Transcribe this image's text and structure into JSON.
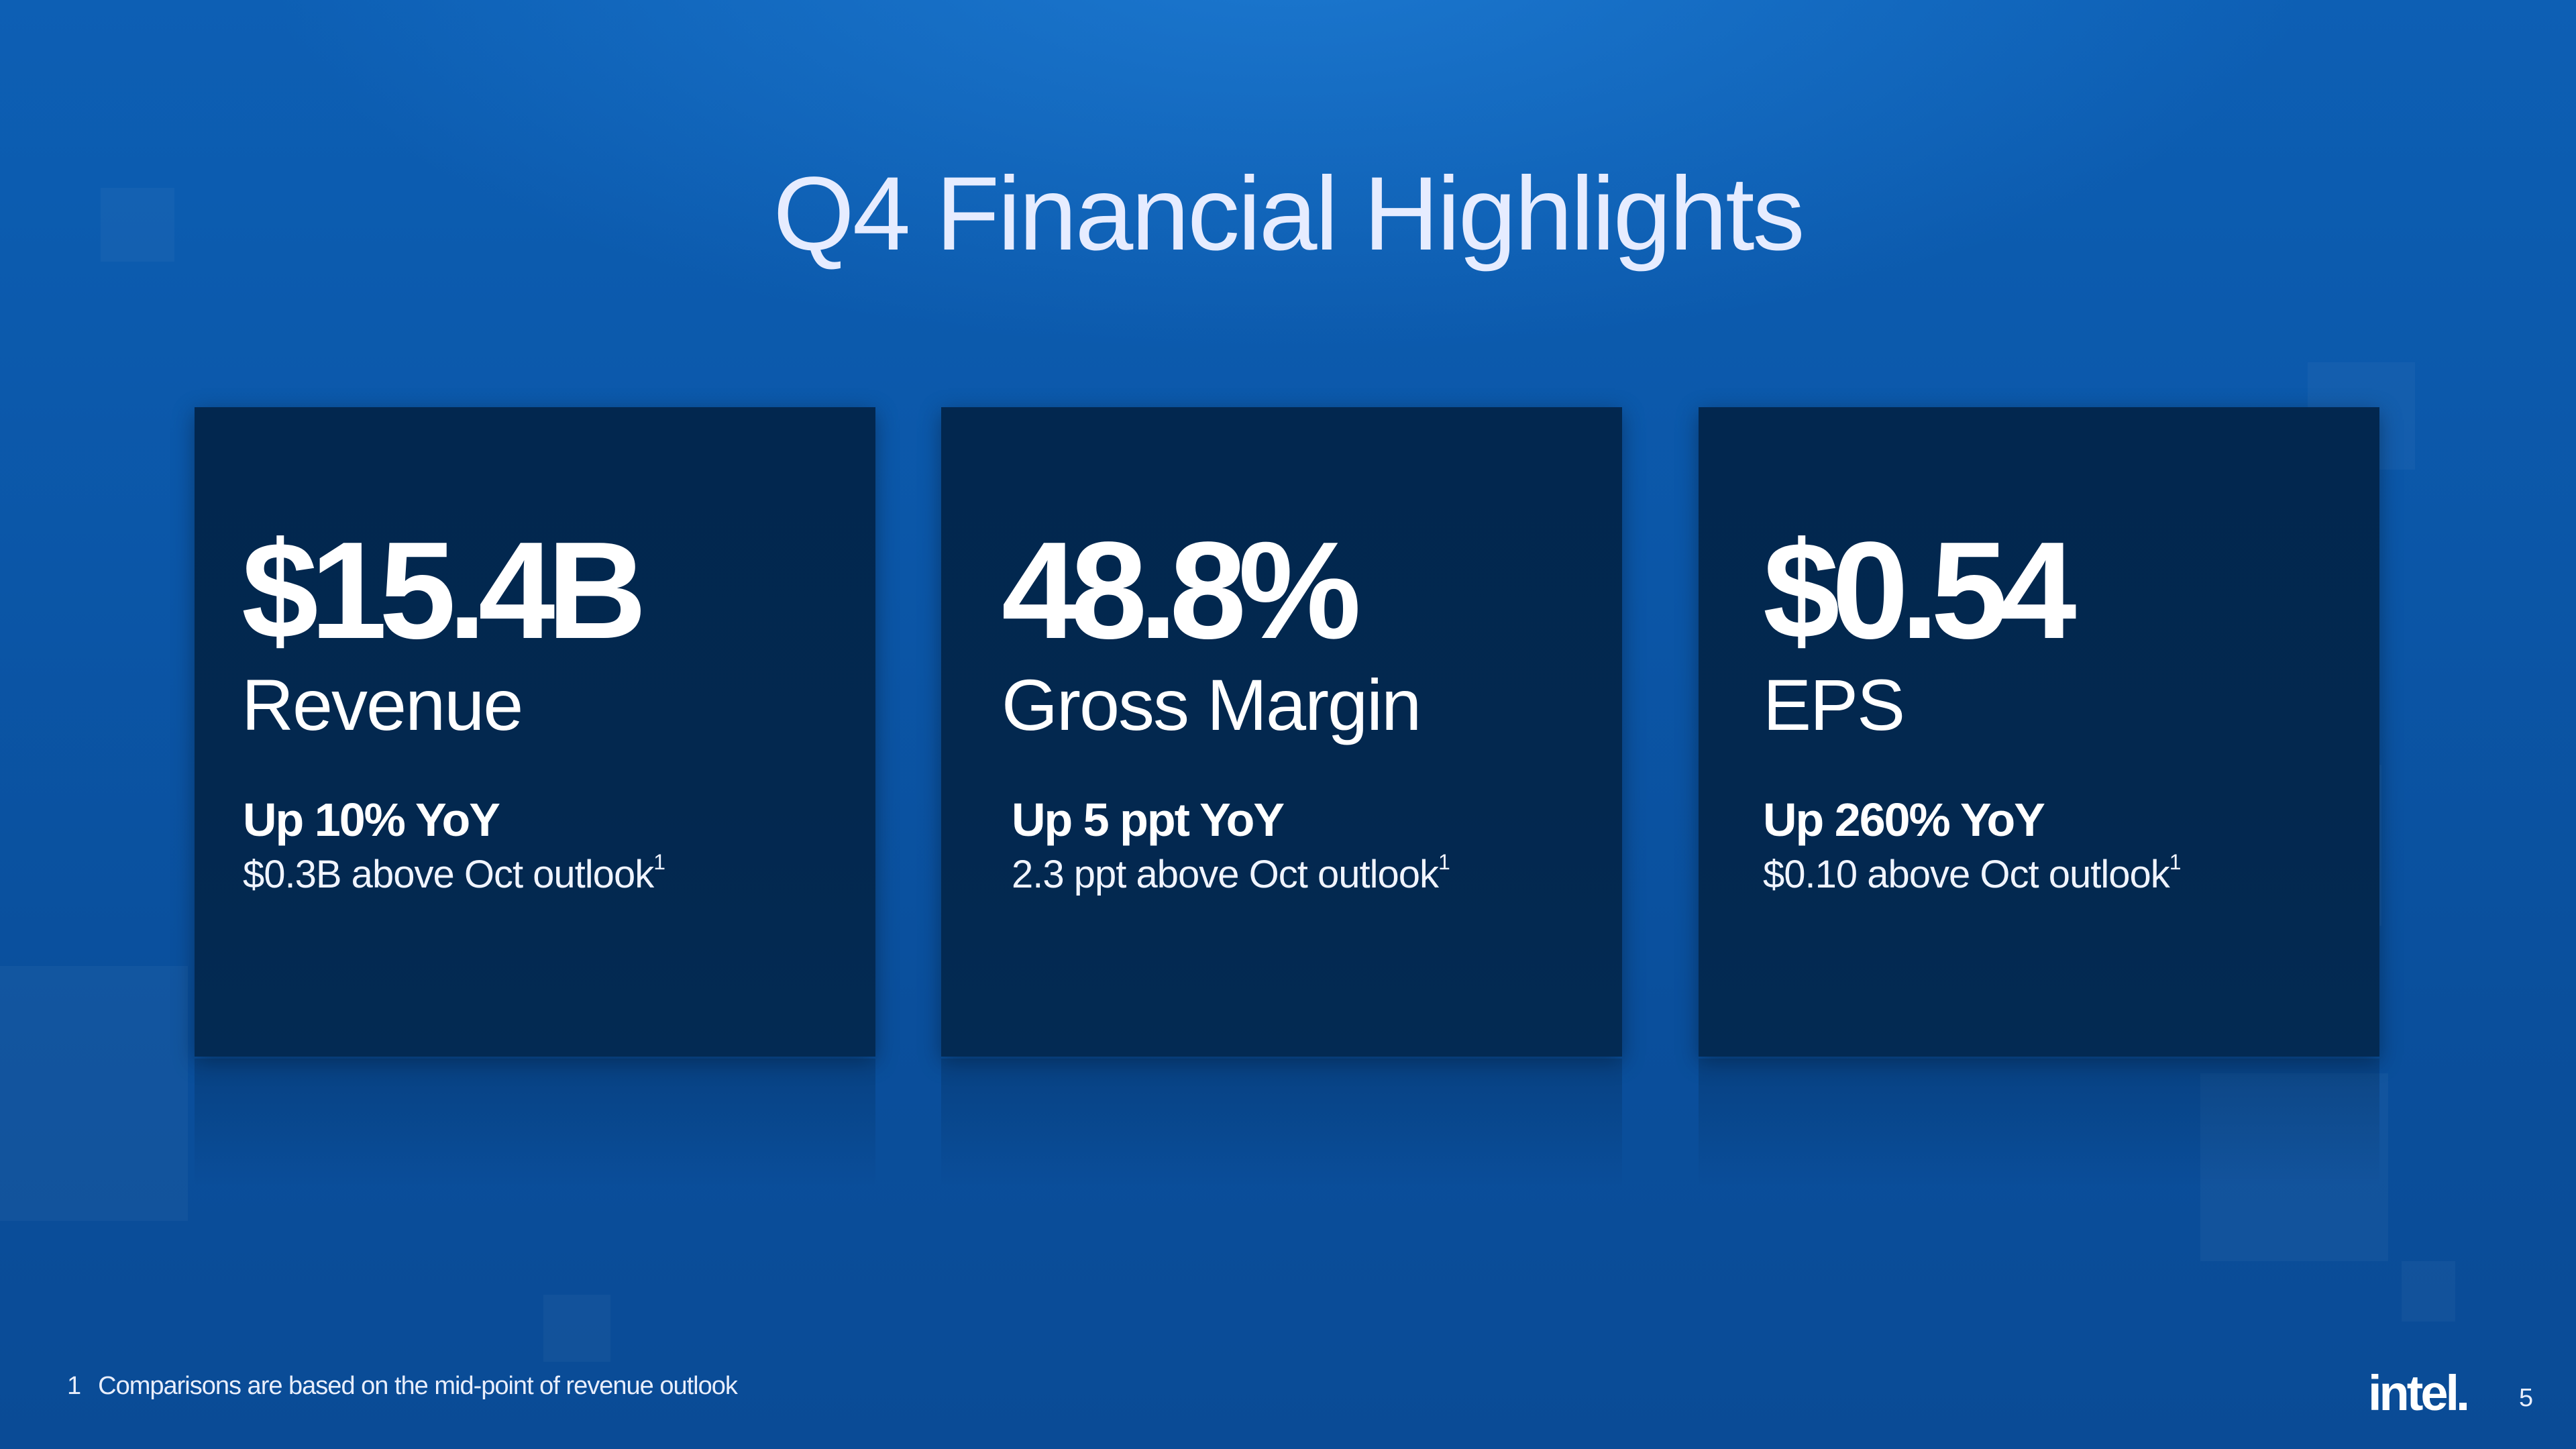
{
  "slide": {
    "title": "Q4 Financial Highlights",
    "page_number": "5"
  },
  "cards": [
    {
      "metric": "$15.4B",
      "label": "Revenue",
      "change": "Up 10% YoY",
      "outlook": "$0.3B above Oct outlook",
      "footnote_ref": "1"
    },
    {
      "metric": "48.8%",
      "label": "Gross Margin",
      "change": "Up 5 ppt YoY",
      "outlook": "2.3 ppt above Oct outlook",
      "footnote_ref": "1"
    },
    {
      "metric": "$0.54",
      "label": "EPS",
      "change": "Up 260% YoY",
      "outlook": "$0.10 above Oct outlook",
      "footnote_ref": "1"
    }
  ],
  "footnote": {
    "number": "1",
    "text": "Comparisons are based on the mid-point of revenue outlook"
  },
  "logo": {
    "text": "intel"
  },
  "colors": {
    "background": "#0b56a7",
    "card": "#02274f",
    "text": "#ffffff"
  }
}
